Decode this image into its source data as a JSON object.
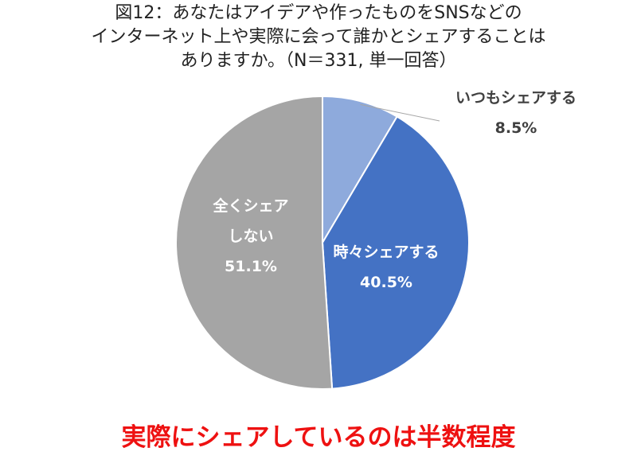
{
  "title": {
    "line1": "図12：あなたはアイデアや作ったものをSNSなどの",
    "line2": "インターネット上や実際に会って誰かとシェアすることは",
    "line3": "ありますか。（N＝331, 単一回答）"
  },
  "chart_data": {
    "type": "pie",
    "start": "12 o'clock, clockwise",
    "slices": [
      {
        "name": "いつもシェアする",
        "value": 8.5,
        "value_label": "8.5%",
        "color": "#8eaadc"
      },
      {
        "name": "時々シェアする",
        "value": 40.5,
        "value_label": "40.5%",
        "color": "#4472c4"
      },
      {
        "name": "全くシェアしない",
        "value": 51.1,
        "value_label": "51.1%",
        "color": "#a5a5a5",
        "name_lines": [
          "全くシェア",
          "しない"
        ]
      }
    ],
    "label_colors": {
      "outside": "#404040",
      "inside": "#ffffff"
    }
  },
  "headline": "実際にシェアしているのは半数程度"
}
